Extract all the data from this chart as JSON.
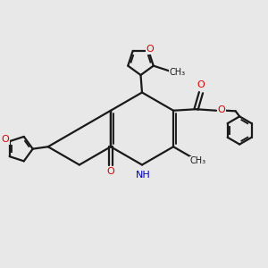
{
  "bg_color": "#e8e8e8",
  "bond_color": "#1a1a1a",
  "o_color": "#dd0000",
  "n_color": "#0000bb",
  "lw": 1.6,
  "figsize": [
    3.0,
    3.0
  ],
  "dpi": 100,
  "xlim": [
    0,
    10
  ],
  "ylim": [
    0,
    10
  ]
}
